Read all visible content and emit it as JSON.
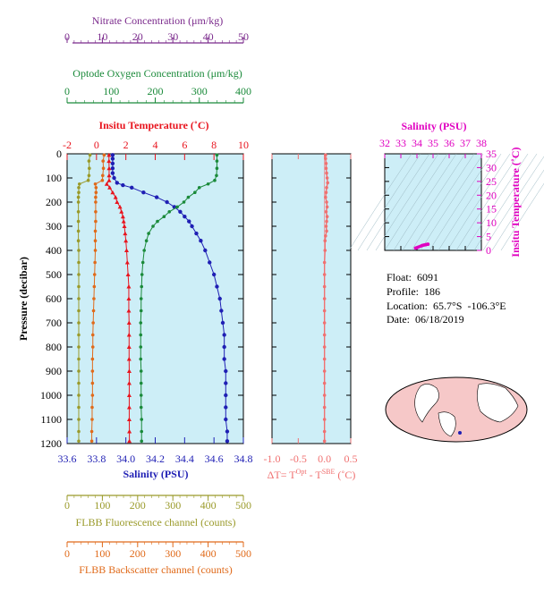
{
  "info": {
    "float": "Float:  6091",
    "profile": "Profile:  186",
    "location": "Location:  65.7°S  -106.3°E",
    "date": "Date:  06/18/2019"
  },
  "chart_data": [
    {
      "type": "line",
      "title": "",
      "ylabel": "Pressure (decibar)",
      "ylim": [
        1200,
        0
      ],
      "yticks": [
        "0",
        "100",
        "200",
        "300",
        "400",
        "500",
        "600",
        "700",
        "800",
        "900",
        "1000",
        "1100",
        "1200"
      ],
      "grid": false,
      "axes": [
        {
          "key": "nitrate",
          "label": "Nitrate Concentration (μm/kg)",
          "range": [
            0,
            50
          ],
          "ticks": [
            "0",
            "10",
            "20",
            "30",
            "40",
            "50"
          ],
          "color": "#7b2a8c",
          "position": "top"
        },
        {
          "key": "oxygen",
          "label": "Optode Oxygen Concentration (μm/kg)",
          "range": [
            0,
            400
          ],
          "ticks": [
            "0",
            "100",
            "200",
            "300",
            "400"
          ],
          "color": "#1a8a3a",
          "position": "top"
        },
        {
          "key": "temperature",
          "label": "Insitu Temperature (˚C)",
          "range": [
            -2,
            10
          ],
          "ticks": [
            "-2",
            "0",
            "2",
            "4",
            "6",
            "8",
            "10"
          ],
          "color": "#e8141e",
          "position": "top"
        },
        {
          "key": "salinity",
          "label": "Salinity (PSU)",
          "range": [
            33.6,
            34.8
          ],
          "ticks": [
            "33.6",
            "33.8",
            "34.0",
            "34.2",
            "34.4",
            "34.6",
            "34.8"
          ],
          "color": "#1f1fb4",
          "position": "bottom"
        },
        {
          "key": "fluorescence",
          "label": "FLBB Fluorescence channel (counts)",
          "range": [
            0,
            500
          ],
          "ticks": [
            "0",
            "100",
            "200",
            "300",
            "400",
            "500"
          ],
          "color": "#9a9a2a",
          "position": "bottom"
        },
        {
          "key": "backscatter",
          "label": "FLBB Backscatter channel (counts)",
          "range": [
            0,
            500
          ],
          "ticks": [
            "0",
            "100",
            "200",
            "300",
            "400",
            "500"
          ],
          "color": "#e06a1a",
          "position": "bottom"
        }
      ],
      "series": [
        {
          "key": "salinity",
          "color": "#1f1fb4",
          "pressure": [
            5,
            20,
            40,
            60,
            80,
            100,
            120,
            130,
            140,
            160,
            180,
            200,
            220,
            240,
            260,
            280,
            300,
            330,
            360,
            400,
            450,
            500,
            550,
            600,
            650,
            700,
            750,
            800,
            850,
            900,
            950,
            1000,
            1050,
            1100,
            1150,
            1190
          ],
          "values": [
            33.91,
            33.91,
            33.91,
            33.91,
            33.91,
            33.92,
            33.94,
            33.98,
            34.04,
            34.12,
            34.21,
            34.28,
            34.33,
            34.37,
            34.4,
            34.43,
            34.45,
            34.48,
            34.51,
            34.54,
            34.57,
            34.6,
            34.62,
            34.64,
            34.65,
            34.66,
            34.67,
            34.67,
            34.67,
            34.68,
            34.68,
            34.68,
            34.68,
            34.68,
            34.69,
            34.69
          ]
        },
        {
          "key": "temperature",
          "color": "#e8141e",
          "pressure": [
            5,
            30,
            60,
            90,
            110,
            125,
            140,
            160,
            180,
            200,
            220,
            240,
            260,
            280,
            300,
            330,
            360,
            400,
            450,
            500,
            550,
            600,
            650,
            700,
            750,
            800,
            850,
            900,
            950,
            1000,
            1050,
            1100,
            1150,
            1190
          ],
          "values": [
            0.85,
            0.85,
            0.86,
            0.86,
            0.86,
            0.7,
            0.9,
            1.1,
            1.3,
            1.4,
            1.6,
            1.7,
            1.8,
            1.85,
            1.9,
            1.95,
            2.0,
            2.05,
            2.1,
            2.15,
            2.2,
            2.2,
            2.2,
            2.22,
            2.22,
            2.22,
            2.22,
            2.23,
            2.23,
            2.23,
            2.23,
            2.23,
            2.24,
            2.24
          ]
        },
        {
          "key": "oxygen",
          "color": "#1a8a3a",
          "pressure": [
            5,
            30,
            60,
            90,
            110,
            125,
            140,
            160,
            180,
            200,
            220,
            240,
            260,
            280,
            300,
            330,
            360,
            400,
            450,
            500,
            550,
            600,
            650,
            700,
            750,
            800,
            850,
            900,
            950,
            1000,
            1050,
            1100,
            1150,
            1190
          ],
          "values": [
            340,
            340,
            340,
            339,
            335,
            320,
            300,
            290,
            275,
            265,
            250,
            232,
            220,
            205,
            195,
            185,
            180,
            175,
            172,
            170,
            169,
            168,
            168,
            167,
            167,
            167,
            167,
            168,
            168,
            168,
            168,
            169,
            169,
            169
          ]
        },
        {
          "key": "fluorescence",
          "color": "#9a9a2a",
          "pressure": [
            5,
            30,
            60,
            90,
            110,
            125,
            140,
            160,
            180,
            200,
            240,
            280,
            320,
            360,
            400,
            450,
            500,
            550,
            600,
            650,
            700,
            750,
            800,
            850,
            900,
            950,
            1000,
            1050,
            1100,
            1150,
            1190
          ],
          "values": [
            65,
            62,
            63,
            62,
            60,
            35,
            33,
            33,
            32,
            32,
            32,
            32,
            32,
            32,
            33,
            33,
            33,
            33,
            33,
            33,
            33,
            33,
            33,
            33,
            33,
            33,
            33,
            33,
            33,
            33,
            33
          ]
        },
        {
          "key": "backscatter",
          "color": "#e06a1a",
          "pressure": [
            5,
            30,
            60,
            90,
            110,
            125,
            140,
            160,
            180,
            200,
            240,
            280,
            320,
            360,
            400,
            450,
            500,
            550,
            600,
            650,
            700,
            750,
            800,
            850,
            900,
            950,
            1000,
            1050,
            1100,
            1150,
            1190
          ],
          "values": [
            105,
            102,
            103,
            101,
            100,
            80,
            82,
            82,
            81,
            81,
            81,
            81,
            80,
            80,
            80,
            79,
            78,
            77,
            76,
            75,
            74,
            73,
            73,
            72,
            72,
            72,
            72,
            71,
            71,
            70,
            70
          ]
        },
        {
          "key": "nitrate",
          "color": "#7b2a8c",
          "pressure": [],
          "values": []
        }
      ]
    },
    {
      "type": "line",
      "title": "",
      "xlabel": "ΔT= T<sup>Opt</sup> - T<sup>SBE</sup> (˚C)",
      "xlabel_main": "ΔT= T",
      "xlabel_sup1": "Opt",
      "xlabel_mid": " - T",
      "xlabel_sup2": "SBE",
      "xlabel_end": " (˚C)",
      "xlim": [
        -1.0,
        0.5
      ],
      "xticks": [
        "-1.0",
        "-0.5",
        "0.0",
        "0.5"
      ],
      "ylim": [
        1200,
        0
      ],
      "series": [
        {
          "name": "",
          "color": "#f07070",
          "pressure": [
            5,
            20,
            40,
            60,
            80,
            100,
            120,
            140,
            160,
            180,
            200,
            220,
            240,
            260,
            280,
            300,
            320,
            340,
            360,
            400,
            450,
            500,
            550,
            600,
            650,
            700,
            750,
            800,
            850,
            900,
            950,
            1000,
            1050,
            1100,
            1150,
            1190
          ],
          "values": [
            0.02,
            0.02,
            0.03,
            0.03,
            0.04,
            0.05,
            0.06,
            0.04,
            0.03,
            0.02,
            0.04,
            0.05,
            0.03,
            0.05,
            0.04,
            0.03,
            0.04,
            0.02,
            0.01,
            0.01,
            0.0,
            0.0,
            0.0,
            0.0,
            0.0,
            0.0,
            0.0,
            0.0,
            0.0,
            0.0,
            0.0,
            0.0,
            0.0,
            0.0,
            0.0,
            0.0
          ]
        }
      ]
    },
    {
      "type": "scatter",
      "title": "",
      "xlabel": "Salinity (PSU)",
      "ylabel": "Insitu Temperature (˚C)",
      "xlim": [
        32,
        38
      ],
      "ylim": [
        0,
        35
      ],
      "xticks": [
        "32",
        "33",
        "34",
        "35",
        "36",
        "37",
        "38"
      ],
      "yticks": [
        "0",
        "5",
        "10",
        "15",
        "20",
        "25",
        "30",
        "35"
      ],
      "color": "#e000c0",
      "points": [
        [
          33.91,
          0.85
        ],
        [
          33.92,
          0.86
        ],
        [
          33.98,
          0.9
        ],
        [
          34.04,
          1.1
        ],
        [
          34.12,
          1.3
        ],
        [
          34.21,
          1.5
        ],
        [
          34.28,
          1.65
        ],
        [
          34.33,
          1.8
        ],
        [
          34.37,
          1.85
        ],
        [
          34.4,
          1.9
        ],
        [
          34.45,
          1.95
        ],
        [
          34.51,
          2.0
        ],
        [
          34.54,
          2.05
        ],
        [
          34.57,
          2.1
        ],
        [
          34.6,
          2.15
        ],
        [
          34.63,
          2.2
        ],
        [
          34.66,
          2.22
        ],
        [
          34.68,
          2.23
        ],
        [
          34.69,
          2.24
        ]
      ]
    }
  ]
}
